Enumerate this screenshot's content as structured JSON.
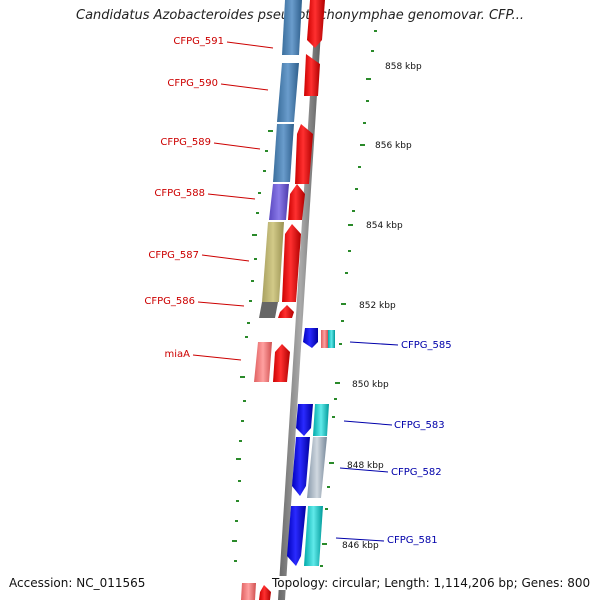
{
  "title": "Candidatus Azobacteroides pseudotrichonymphae genomovar. CFP...",
  "accession": "Accession: NC_011565",
  "summary": "Topology: circular; Length: 1,114,206 bp; Genes: 800",
  "scale_labels": [
    "858 kbp",
    "856 kbp",
    "854 kbp",
    "852 kbp",
    "850 kbp",
    "848 kbp",
    "846 kbp"
  ],
  "left_genes": [
    "CFPG_591",
    "CFPG_590",
    "CFPG_589",
    "CFPG_588",
    "CFPG_587",
    "CFPG_586",
    "miaA"
  ],
  "right_genes": [
    "CFPG_585",
    "CFPG_583",
    "CFPG_582",
    "CFPG_581"
  ],
  "colors": {
    "forward": "#ff0000",
    "reverse": "#0000ff",
    "left_label": "#cc0000",
    "right_label": "#0000aa",
    "tick": "#2a8a2a"
  }
}
